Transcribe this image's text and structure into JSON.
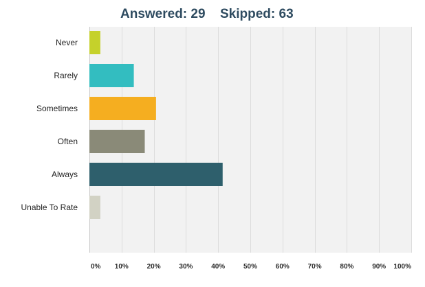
{
  "header": {
    "answered": "Answered: 29",
    "skipped": "Skipped: 63"
  },
  "chart_data": {
    "type": "bar",
    "orientation": "horizontal",
    "title": "Answered: 29    Skipped: 63",
    "categories": [
      "Never",
      "Rarely",
      "Sometimes",
      "Often",
      "Always",
      "Unable To Rate"
    ],
    "values": [
      3.4,
      13.8,
      20.7,
      17.2,
      41.4,
      3.4
    ],
    "colors": [
      "#c5d12b",
      "#33bdc0",
      "#f5ae20",
      "#8a8a78",
      "#2e5f6c",
      "#d2d2c4"
    ],
    "xlim": [
      0,
      100
    ],
    "xticks": [
      "0%",
      "10%",
      "20%",
      "30%",
      "40%",
      "50%",
      "60%",
      "70%",
      "80%",
      "90%",
      "100%"
    ],
    "grid": true,
    "plot_background": "#f2f2f2"
  }
}
